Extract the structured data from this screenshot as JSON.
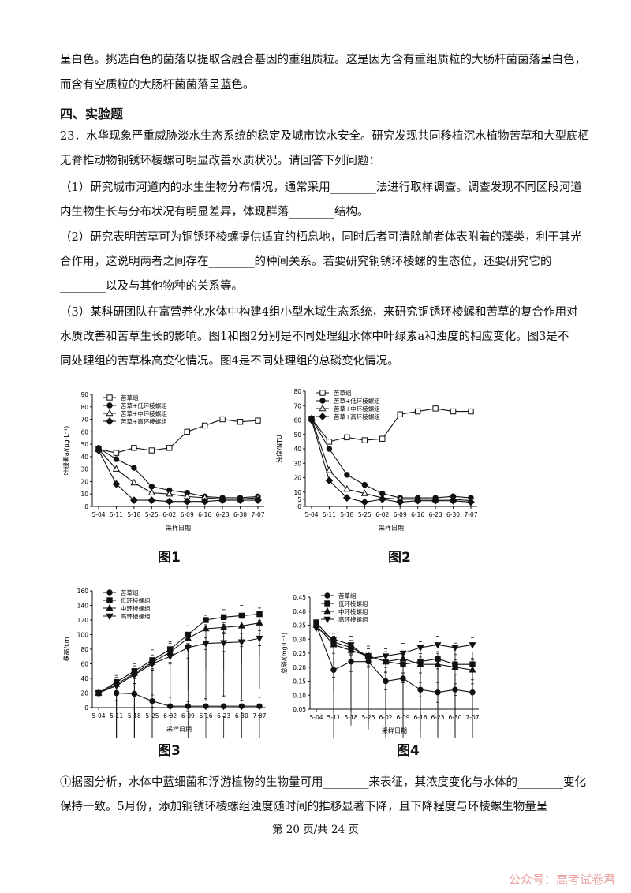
{
  "lines": [
    "呈白色。挑选白色的菌落以提取含融合基因的重组质粒。这是因为含有重组质粒的大肠杆菌菌落呈白色，",
    "而含有空质粒的大肠杆菌菌落呈蓝色。",
    "23．水华现象严重威胁淡水生态系统的稳定及城市饮水安全。研究发现共同移植沉水植物苦草和大型底栖",
    "无脊椎动物铜锈环棱螺可明显改善水质状况。请回答下列问题：",
    "（1）研究城市河道内的水生生物分布情况，通常采用________法进行取样调查。调查发现不同区段河道",
    "内生物生长与分布状况有明显差异，体现群落________结构。",
    "（2）研究表明苦草可为铜锈环棱螺提供适宜的栖息地，同时后者可清除前者体表附着的藻类，利于其光",
    "合作用，这说明两者之间存在________的种间关系。若要研究铜锈环棱螺的生态位，还要研究它的",
    "________以及与其他物种的关系等。",
    "（3）某科研团队在富营养化水体中构建4组小型水域生态系统，来研究铜锈环棱螺和苦草的复合作用对",
    "水质改善和苦草生长的影响。图1和图2分别是不同处理组水体中叶绿素a和浊度的相应变化。图3是不",
    "同处理组的苦草株高变化情况。图4是不同处理组的总磷变化情况。",
    "①据图分析，水体中蓝细菌和浮游植物的生物量可用________来表征，其浓度变化与水体的________变化",
    "保持一致。5月份，添加铜锈环棱螺组浊度随时间的推移显著下降，且下降程度与环棱螺生物量呈"
  ],
  "heading": "四、实验题",
  "footer": "第 20 页/共 24 页",
  "watermark": "公众号：高考试卷君",
  "captions": [
    "图1",
    "图2",
    "图3",
    "图4"
  ],
  "chart_data": [
    {
      "type": "line",
      "title": "",
      "xlabel": "采样日期",
      "ylabel": "叶绿素a/(μg·L⁻¹)",
      "ylim": [
        0,
        90
      ],
      "yticks": [
        0,
        10,
        20,
        30,
        40,
        50,
        60,
        70,
        80,
        90
      ],
      "categories": [
        "5-04",
        "5-11",
        "5-18",
        "5-25",
        "6-02",
        "6-09",
        "6-16",
        "6-23",
        "6-30",
        "7-07"
      ],
      "legend": "top-left",
      "series": [
        {
          "name": "苦草组",
          "marker": "open-square",
          "values": [
            46,
            43,
            47,
            45,
            47,
            60,
            65,
            70,
            68,
            69
          ]
        },
        {
          "name": "苦草+低环棱螺组",
          "marker": "filled-circle",
          "values": [
            47,
            38,
            31,
            16,
            13,
            11,
            8,
            7,
            7,
            8
          ]
        },
        {
          "name": "苦草+中环棱螺组",
          "marker": "open-triangle",
          "values": [
            46,
            30,
            19,
            11,
            10,
            8,
            7,
            6,
            6,
            7
          ]
        },
        {
          "name": "苦草+高环棱螺组",
          "marker": "filled-diamond",
          "values": [
            45,
            18,
            5,
            5,
            4,
            4,
            4,
            5,
            5,
            5
          ]
        }
      ]
    },
    {
      "type": "line",
      "title": "",
      "xlabel": "采样日期",
      "ylabel": "浊度/NTU",
      "ylim": [
        0,
        80
      ],
      "yticks": [
        0,
        5,
        10,
        20,
        30,
        40,
        50,
        60,
        70,
        80
      ],
      "categories": [
        "5-04",
        "5-11",
        "5-18",
        "5-25",
        "6-02",
        "6-09",
        "6-16",
        "6-23",
        "6-30",
        "7-07"
      ],
      "legend": "top-left",
      "series": [
        {
          "name": "苦草组",
          "marker": "open-square",
          "values": [
            61,
            45,
            48,
            46,
            47,
            64,
            66,
            68,
            66,
            66
          ]
        },
        {
          "name": "苦草+低环棱螺组",
          "marker": "filled-circle",
          "values": [
            61,
            40,
            22,
            15,
            9,
            6,
            6,
            6,
            7,
            6
          ]
        },
        {
          "name": "苦草+中环棱螺组",
          "marker": "open-triangle",
          "values": [
            61,
            25,
            12,
            9,
            6,
            5,
            5,
            5,
            5,
            4
          ]
        },
        {
          "name": "苦草+高环棱螺组",
          "marker": "filled-diamond",
          "values": [
            60,
            18,
            6,
            3,
            5,
            3,
            4,
            4,
            4,
            3
          ]
        }
      ]
    },
    {
      "type": "line",
      "title": "",
      "xlabel": "采样日期",
      "ylabel": "株高/cm",
      "ylim": [
        0,
        160
      ],
      "yticks": [
        0,
        20,
        40,
        60,
        80,
        100,
        120,
        140,
        160
      ],
      "categories": [
        "5-04",
        "5-11",
        "5-18",
        "5-25",
        "6-02",
        "6-09",
        "6-16",
        "6-23",
        "6-30",
        "7-07"
      ],
      "legend": "top-left",
      "series": [
        {
          "name": "苦草组",
          "marker": "filled-circle",
          "values": [
            20,
            20,
            19,
            9,
            2,
            2,
            2,
            2,
            2,
            2
          ]
        },
        {
          "name": "低环棱螺组",
          "marker": "filled-square",
          "values": [
            20,
            35,
            50,
            65,
            80,
            100,
            120,
            124,
            126,
            128
          ]
        },
        {
          "name": "中环棱螺组",
          "marker": "filled-triangle",
          "values": [
            20,
            32,
            47,
            62,
            76,
            95,
            108,
            110,
            112,
            116
          ]
        },
        {
          "name": "高环棱螺组",
          "marker": "filled-invtriangle",
          "values": [
            20,
            30,
            45,
            60,
            70,
            82,
            88,
            89,
            90,
            95
          ]
        }
      ]
    },
    {
      "type": "line",
      "title": "",
      "xlabel": "采样日期",
      "ylabel": "总磷/(mg·L⁻¹)",
      "ylim": [
        0.05,
        0.45
      ],
      "yticks": [
        0.05,
        0.1,
        0.15,
        0.2,
        0.25,
        0.3,
        0.35,
        0.4,
        0.45
      ],
      "categories": [
        "5-04",
        "5-11",
        "5-18",
        "5-25",
        "6-02",
        "6-09",
        "6-16",
        "6-23",
        "6-30",
        "7-07"
      ],
      "xtick_labels": [
        "5-04",
        "5-11",
        "5-18",
        "5-25",
        "6-02",
        "6-09",
        "6-16",
        "6-23",
        "6-30",
        "7-07"
      ],
      "legend": "top-left",
      "series": [
        {
          "name": "苦草组",
          "marker": "filled-circle",
          "values": [
            0.35,
            0.19,
            0.22,
            0.22,
            0.15,
            0.16,
            0.12,
            0.11,
            0.12,
            0.11
          ]
        },
        {
          "name": "低环棱螺组",
          "marker": "filled-square",
          "values": [
            0.36,
            0.29,
            0.27,
            0.24,
            0.22,
            0.21,
            0.22,
            0.23,
            0.21,
            0.21
          ]
        },
        {
          "name": "中环棱螺组",
          "marker": "filled-triangle",
          "values": [
            0.35,
            0.28,
            0.26,
            0.24,
            0.22,
            0.23,
            0.21,
            0.21,
            0.2,
            0.19
          ]
        },
        {
          "name": "高环棱螺组",
          "marker": "filled-invtriangle",
          "values": [
            0.34,
            0.3,
            0.28,
            0.23,
            0.24,
            0.25,
            0.27,
            0.28,
            0.27,
            0.28
          ]
        }
      ]
    }
  ]
}
